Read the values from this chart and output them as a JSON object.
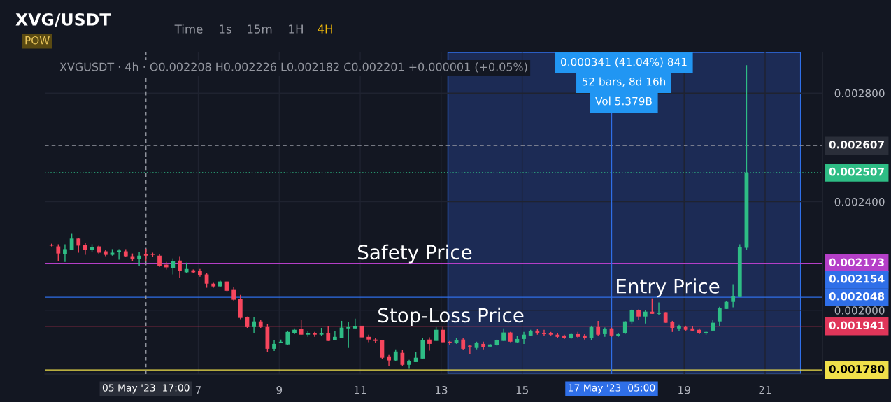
{
  "chart_data": {
    "type": "candlestick",
    "title": "XVG/USDT",
    "subtitle": "POW",
    "x": [
      "2023-05-03T09:00",
      "2023-05-03T13:00",
      "2023-05-03T17:00",
      "2023-05-03T21:00",
      "2023-05-04T01:00",
      "2023-05-04T05:00",
      "2023-05-04T09:00",
      "2023-05-04T13:00",
      "2023-05-04T17:00",
      "2023-05-04T21:00",
      "2023-05-05T01:00",
      "2023-05-05T05:00",
      "2023-05-05T09:00",
      "2023-05-05T13:00",
      "2023-05-05T17:00",
      "2023-05-05T21:00",
      "2023-05-06T01:00",
      "2023-05-06T05:00",
      "2023-05-06T09:00",
      "2023-05-06T13:00",
      "2023-05-06T17:00",
      "2023-05-06T21:00",
      "2023-05-07T01:00",
      "2023-05-07T05:00",
      "2023-05-07T09:00",
      "2023-05-07T13:00",
      "2023-05-07T17:00",
      "2023-05-07T21:00",
      "2023-05-08T01:00",
      "2023-05-08T05:00",
      "2023-05-08T09:00",
      "2023-05-08T13:00",
      "2023-05-08T17:00",
      "2023-05-08T21:00",
      "2023-05-09T01:00",
      "2023-05-09T05:00",
      "2023-05-09T09:00",
      "2023-05-09T13:00",
      "2023-05-09T17:00",
      "2023-05-09T21:00",
      "2023-05-10T01:00",
      "2023-05-10T05:00",
      "2023-05-10T09:00",
      "2023-05-10T13:00",
      "2023-05-10T17:00",
      "2023-05-10T21:00",
      "2023-05-11T01:00",
      "2023-05-11T05:00",
      "2023-05-11T09:00",
      "2023-05-11T13:00",
      "2023-05-11T17:00",
      "2023-05-11T21:00",
      "2023-05-12T01:00",
      "2023-05-12T05:00",
      "2023-05-12T09:00",
      "2023-05-12T13:00",
      "2023-05-12T17:00",
      "2023-05-12T21:00",
      "2023-05-13T01:00",
      "2023-05-13T05:00",
      "2023-05-13T09:00",
      "2023-05-13T13:00",
      "2023-05-13T17:00",
      "2023-05-13T21:00",
      "2023-05-14T01:00",
      "2023-05-14T05:00",
      "2023-05-14T09:00",
      "2023-05-14T13:00",
      "2023-05-14T17:00",
      "2023-05-14T21:00",
      "2023-05-15T01:00",
      "2023-05-15T05:00",
      "2023-05-15T09:00",
      "2023-05-15T13:00",
      "2023-05-15T17:00",
      "2023-05-15T21:00",
      "2023-05-16T01:00",
      "2023-05-16T05:00",
      "2023-05-16T09:00",
      "2023-05-16T13:00",
      "2023-05-16T17:00",
      "2023-05-16T21:00",
      "2023-05-17T01:00",
      "2023-05-17T05:00",
      "2023-05-17T09:00",
      "2023-05-17T13:00",
      "2023-05-17T17:00",
      "2023-05-17T21:00",
      "2023-05-18T01:00",
      "2023-05-18T05:00",
      "2023-05-18T09:00",
      "2023-05-18T13:00",
      "2023-05-18T17:00",
      "2023-05-18T21:00",
      "2023-05-19T01:00",
      "2023-05-19T05:00",
      "2023-05-19T09:00",
      "2023-05-19T13:00",
      "2023-05-19T17:00",
      "2023-05-19T21:00",
      "2023-05-20T01:00",
      "2023-05-20T05:00",
      "2023-05-20T09:00",
      "2023-05-20T13:00"
    ],
    "ohlc": [
      [
        0.002241,
        0.002245,
        0.002235,
        0.002238
      ],
      [
        0.002235,
        0.002243,
        0.002181,
        0.002209
      ],
      [
        0.002206,
        0.002243,
        0.002178,
        0.002225
      ],
      [
        0.002222,
        0.002284,
        0.002222,
        0.002264
      ],
      [
        0.002264,
        0.002266,
        0.002212,
        0.002238
      ],
      [
        0.00224,
        0.002248,
        0.002204,
        0.002222
      ],
      [
        0.002222,
        0.002243,
        0.002214,
        0.002232
      ],
      [
        0.002235,
        0.002238,
        0.002209,
        0.002212
      ],
      [
        0.002217,
        0.002222,
        0.002199,
        0.002204
      ],
      [
        0.002204,
        0.002225,
        0.002201,
        0.002212
      ],
      [
        0.002214,
        0.002225,
        0.002186,
        0.00222
      ],
      [
        0.002217,
        0.002225,
        0.002196,
        0.002199
      ],
      [
        0.002199,
        0.002209,
        0.002181,
        0.002189
      ],
      [
        0.002189,
        0.002214,
        0.002163,
        0.002201
      ],
      [
        0.002208,
        0.002226,
        0.002182,
        0.002201
      ],
      [
        0.002207,
        0.002212,
        0.002196,
        0.002204
      ],
      [
        0.002201,
        0.002207,
        0.00216,
        0.002163
      ],
      [
        0.002168,
        0.002178,
        0.00215,
        0.002158
      ],
      [
        0.002155,
        0.002191,
        0.002132,
        0.002181
      ],
      [
        0.002183,
        0.002199,
        0.002119,
        0.002145
      ],
      [
        0.00214,
        0.002175,
        0.002137,
        0.002152
      ],
      [
        0.002147,
        0.00215,
        0.002137,
        0.00214
      ],
      [
        0.002145,
        0.002152,
        0.002124,
        0.002129
      ],
      [
        0.002132,
        0.002137,
        0.002083,
        0.002098
      ],
      [
        0.002098,
        0.002101,
        0.002083,
        0.002088
      ],
      [
        0.002088,
        0.002109,
        0.002085,
        0.002106
      ],
      [
        0.002106,
        0.002106,
        0.00207,
        0.002072
      ],
      [
        0.002075,
        0.002085,
        0.002036,
        0.002039
      ],
      [
        0.002042,
        0.002057,
        0.001967,
        0.001972
      ],
      [
        0.001974,
        0.001977,
        0.001935,
        0.001938
      ],
      [
        0.001938,
        0.001974,
        0.001917,
        0.001959
      ],
      [
        0.001959,
        0.001964,
        0.001935,
        0.001938
      ],
      [
        0.001938,
        0.001948,
        0.001845,
        0.001858
      ],
      [
        0.001858,
        0.001889,
        0.00185,
        0.001876
      ],
      [
        0.001881,
        0.001892,
        0.001879,
        0.001884
      ],
      [
        0.001874,
        0.001925,
        0.001871,
        0.00192
      ],
      [
        0.001915,
        0.001933,
        0.001912,
        0.001928
      ],
      [
        0.00193,
        0.001966,
        0.00191,
        0.00191
      ],
      [
        0.00191,
        0.001925,
        0.001902,
        0.001915
      ],
      [
        0.001915,
        0.00192,
        0.001902,
        0.00191
      ],
      [
        0.00191,
        0.001935,
        0.001905,
        0.001917
      ],
      [
        0.001917,
        0.001943,
        0.001887,
        0.001887
      ],
      [
        0.001889,
        0.001925,
        0.001889,
        0.001902
      ],
      [
        0.001899,
        0.001961,
        0.001897,
        0.001936
      ],
      [
        0.001933,
        0.001956,
        0.001861,
        0.001938
      ],
      [
        0.001933,
        0.001969,
        0.001933,
        0.001941
      ],
      [
        0.001943,
        0.001943,
        0.0019,
        0.0019
      ],
      [
        0.001902,
        0.00191,
        0.001882,
        0.001892
      ],
      [
        0.001892,
        0.001897,
        0.001879,
        0.001887
      ],
      [
        0.001889,
        0.001889,
        0.00182,
        0.001825
      ],
      [
        0.00183,
        0.001835,
        0.001794,
        0.001815
      ],
      [
        0.001815,
        0.001856,
        0.001812,
        0.001848
      ],
      [
        0.001843,
        0.001853,
        0.001796,
        0.001799
      ],
      [
        0.001799,
        0.001817,
        0.001784,
        0.001812
      ],
      [
        0.001809,
        0.001846,
        0.001809,
        0.001825
      ],
      [
        0.001822,
        0.001897,
        0.001822,
        0.001889
      ],
      [
        0.001892,
        0.0019,
        0.001851,
        0.001876
      ],
      [
        0.001887,
        0.001938,
        0.001887,
        0.001928
      ],
      [
        0.001928,
        0.001938,
        0.001882,
        0.001882
      ],
      [
        0.001884,
        0.001887,
        0.001871,
        0.001879
      ],
      [
        0.001879,
        0.001897,
        0.001876,
        0.001889
      ],
      [
        0.001892,
        0.001897,
        0.001853,
        0.001858
      ],
      [
        0.001869,
        0.001871,
        0.00184,
        0.001866
      ],
      [
        0.001861,
        0.001884,
        0.001856,
        0.001879
      ],
      [
        0.001876,
        0.001884,
        0.001856,
        0.001864
      ],
      [
        0.001866,
        0.001876,
        0.001864,
        0.001874
      ],
      [
        0.001871,
        0.001892,
        0.001869,
        0.001889
      ],
      [
        0.001887,
        0.001933,
        0.001887,
        0.001918
      ],
      [
        0.001918,
        0.00192,
        0.001882,
        0.001884
      ],
      [
        0.001882,
        0.001905,
        0.001879,
        0.001894
      ],
      [
        0.001894,
        0.00192,
        0.001876,
        0.00191
      ],
      [
        0.001907,
        0.001928,
        0.001905,
        0.001923
      ],
      [
        0.001925,
        0.00193,
        0.00191,
        0.001915
      ],
      [
        0.001917,
        0.001928,
        0.001907,
        0.001912
      ],
      [
        0.001915,
        0.00192,
        0.001907,
        0.00191
      ],
      [
        0.00191,
        0.001915,
        0.001899,
        0.001902
      ],
      [
        0.001907,
        0.00191,
        0.001894,
        0.001899
      ],
      [
        0.001899,
        0.001917,
        0.001894,
        0.001912
      ],
      [
        0.001912,
        0.00192,
        0.001897,
        0.001902
      ],
      [
        0.001907,
        0.001912,
        0.001892,
        0.001897
      ],
      [
        0.001899,
        0.001943,
        0.001889,
        0.001938
      ],
      [
        0.001938,
        0.001961,
        0.001907,
        0.00191
      ],
      [
        0.001912,
        0.001936,
        0.001902,
        0.00193
      ],
      [
        0.001933,
        0.001936,
        0.001902,
        0.001907
      ],
      [
        0.001905,
        0.001917,
        0.001902,
        0.001912
      ],
      [
        0.001915,
        0.001961,
        0.001912,
        0.001959
      ],
      [
        0.001959,
        0.002003,
        0.001951,
        0.002
      ],
      [
        0.002,
        0.002003,
        0.001964,
        0.001977
      ],
      [
        0.001977,
        0.002,
        0.001951,
        0.001995
      ],
      [
        0.001995,
        0.002044,
        0.001987,
        0.001987
      ],
      [
        0.001987,
        0.002029,
        0.001982,
        0.00199
      ],
      [
        0.001993,
        0.001993,
        0.001954,
        0.001954
      ],
      [
        0.001956,
        0.001961,
        0.00192,
        0.001935
      ],
      [
        0.001933,
        0.001946,
        0.001925,
        0.001941
      ],
      [
        0.001938,
        0.001943,
        0.001925,
        0.001928
      ],
      [
        0.001933,
        0.001943,
        0.001925,
        0.001925
      ],
      [
        0.001928,
        0.001933,
        0.001912,
        0.001917
      ],
      [
        0.001915,
        0.001925,
        0.00191,
        0.00192
      ],
      [
        0.001925,
        0.001964,
        0.001923,
        0.001954
      ],
      [
        0.001959,
        0.002013,
        0.001943,
        0.002008
      ],
      [
        0.002005,
        0.002034,
        0.002005,
        0.002031
      ],
      [
        0.002031,
        0.002096,
        0.002011,
        0.002052
      ],
      [
        0.002049,
        0.002243,
        0.002049,
        0.002232
      ],
      [
        0.00223,
        0.002903,
        0.002222,
        0.002507
      ]
    ],
    "colors": [
      "#f6465d",
      "#f6465d",
      "#2ebd85",
      "#2ebd85",
      "#f6465d",
      "#f6465d",
      "#2ebd85",
      "#f6465d",
      "#f6465d",
      "#2ebd85",
      "#2ebd85",
      "#f6465d",
      "#f6465d",
      "#2ebd85",
      "#f6465d",
      "#f6465d",
      "#f6465d",
      "#f6465d",
      "#2ebd85",
      "#f6465d",
      "#2ebd85",
      "#f6465d",
      "#f6465d",
      "#f6465d",
      "#f6465d",
      "#2ebd85",
      "#f6465d",
      "#f6465d",
      "#f6465d",
      "#f6465d",
      "#2ebd85",
      "#f6465d",
      "#f6465d",
      "#2ebd85",
      "#2ebd85",
      "#2ebd85",
      "#2ebd85",
      "#f6465d",
      "#2ebd85",
      "#f6465d",
      "#2ebd85",
      "#f6465d",
      "#2ebd85",
      "#2ebd85",
      "#2ebd85",
      "#2ebd85",
      "#f6465d",
      "#f6465d",
      "#f6465d",
      "#f6465d",
      "#f6465d",
      "#2ebd85",
      "#f6465d",
      "#2ebd85",
      "#2ebd85",
      "#2ebd85",
      "#f6465d",
      "#2ebd85",
      "#f6465d",
      "#f6465d",
      "#2ebd85",
      "#f6465d",
      "#f6465d",
      "#2ebd85",
      "#f6465d",
      "#2ebd85",
      "#2ebd85",
      "#2ebd85",
      "#f6465d",
      "#2ebd85",
      "#2ebd85",
      "#2ebd85",
      "#f6465d",
      "#f6465d",
      "#f6465d",
      "#f6465d",
      "#f6465d",
      "#2ebd85",
      "#f6465d",
      "#f6465d",
      "#2ebd85",
      "#f6465d",
      "#2ebd85",
      "#f6465d",
      "#2ebd85",
      "#2ebd85",
      "#2ebd85",
      "#f6465d",
      "#2ebd85",
      "#f6465d",
      "#2ebd85",
      "#f6465d",
      "#f6465d",
      "#2ebd85",
      "#f6465d",
      "#f6465d",
      "#f6465d",
      "#2ebd85",
      "#2ebd85",
      "#2ebd85",
      "#2ebd85",
      "#2ebd85",
      "#2ebd85",
      "#2ebd85"
    ],
    "xlim": [
      "2023-05-03T05:00",
      "2023-05-22T10:00"
    ],
    "xticks": [
      {
        "value": "2023-05-07",
        "label": "7"
      },
      {
        "value": "2023-05-09",
        "label": "9"
      },
      {
        "value": "2023-05-11",
        "label": "11"
      },
      {
        "value": "2023-05-13",
        "label": "13"
      },
      {
        "value": "2023-05-15",
        "label": "15"
      },
      {
        "value": "2023-05-19",
        "label": "19"
      },
      {
        "value": "2023-05-21",
        "label": "21"
      }
    ],
    "ylim": [
      0.001765,
      0.00295
    ],
    "yticks": [
      {
        "value": 0.002,
        "label": "0.002000"
      },
      {
        "value": 0.0024,
        "label": "0.002400"
      },
      {
        "value": 0.0028,
        "label": "0.002800"
      }
    ],
    "grid": true,
    "ref_lines": [
      {
        "axis": "y",
        "value": 0.002607,
        "label": "0.002607",
        "color": "#9598a1",
        "line_style": "dashed"
      },
      {
        "axis": "y",
        "value": 0.002507,
        "label": "0.002507",
        "color": "#2ebd85",
        "line_style": "dotted"
      },
      {
        "axis": "y",
        "value": 0.002173,
        "label": "0.002173",
        "color": "#b53fc8"
      },
      {
        "axis": "y",
        "value": 0.002048,
        "label": "0.002048",
        "color": "#2f6fe8"
      },
      {
        "axis": "y",
        "value": 0.001941,
        "label": "0.001941",
        "color": "#e0365a"
      },
      {
        "axis": "y",
        "value": 0.00178,
        "label": "0.001780",
        "color": "#f0e04a"
      },
      {
        "axis": "x",
        "value": "2023-05-05T17:00",
        "label": "05 May '23  17:00",
        "color": "#9598a1",
        "line_style": "dashed"
      },
      {
        "axis": "x",
        "value": "2023-05-17T05:00",
        "label": "17 May '23  05:00",
        "color": "#2f6fe8"
      }
    ],
    "bands": [
      {
        "axis": "x",
        "from": "2023-05-13T04:00",
        "to": "2023-05-21T21:00",
        "color": "#1c2b55"
      }
    ],
    "annotations": [
      "Time",
      "1s",
      "15m",
      "1H",
      "4H",
      "XVGUSDT · 4h · O0.002208 H0.002226 L0.002182 C0.002201 +0.000001 (+0.05%)",
      "0.000341 (41.04%) 841",
      "52 bars, 8d 16h",
      "Vol 5.379B",
      "0.002154",
      {
        "text": "Safety Price",
        "x": "2023-05-10T22:00",
        "y": 0.002173
      },
      {
        "text": "Stop-Loss Price",
        "x": "2023-05-11T10:00",
        "y": 0.001941
      },
      {
        "text": "Entry Price",
        "x": "2023-05-17T07:00",
        "y": 0.002048
      }
    ]
  }
}
